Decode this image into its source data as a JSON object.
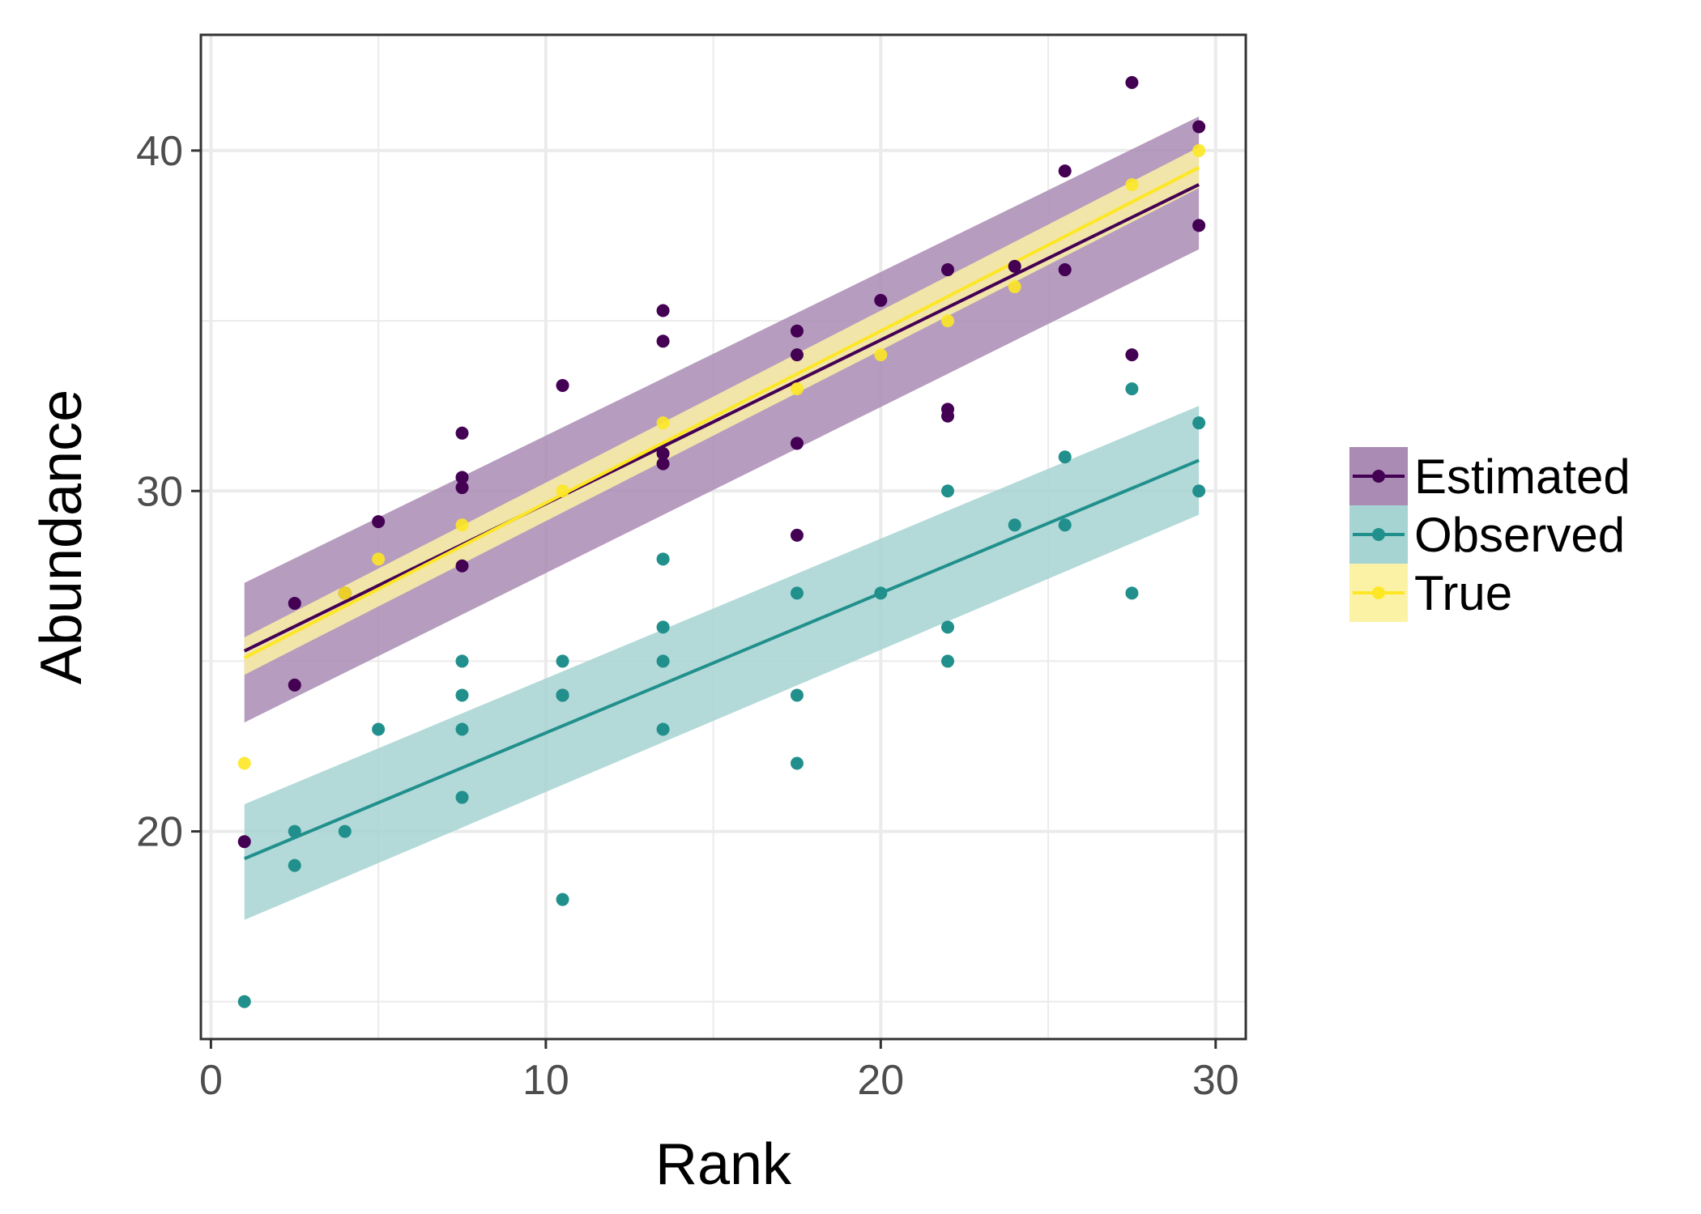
{
  "chart_data": {
    "type": "scatter",
    "xlabel": "Rank",
    "ylabel": "Abundance",
    "xlim": [
      -0.3,
      30.9
    ],
    "ylim": [
      13.9,
      43.4
    ],
    "x_ticks": [
      0,
      10,
      20,
      30
    ],
    "y_ticks": [
      20,
      30,
      40
    ],
    "grid": true,
    "legend_position": "right",
    "series": [
      {
        "name": "Estimated",
        "color": "#440154",
        "fill": "#A98BB3",
        "points": [
          [
            1,
            19.7
          ],
          [
            2.5,
            26.7
          ],
          [
            2.5,
            24.3
          ],
          [
            4,
            27
          ],
          [
            5,
            29.1
          ],
          [
            7.5,
            31.7
          ],
          [
            7.5,
            30.4
          ],
          [
            7.5,
            30.1
          ],
          [
            7.5,
            27.8
          ],
          [
            10.5,
            33.1
          ],
          [
            10.5,
            24
          ],
          [
            13.5,
            35.3
          ],
          [
            13.5,
            34.4
          ],
          [
            13.5,
            31.1
          ],
          [
            13.5,
            30.8
          ],
          [
            17.5,
            34.7
          ],
          [
            17.5,
            34
          ],
          [
            17.5,
            31.4
          ],
          [
            17.5,
            28.7
          ],
          [
            20,
            35.6
          ],
          [
            22,
            36.5
          ],
          [
            22,
            32.4
          ],
          [
            22,
            32.2
          ],
          [
            24,
            36.6
          ],
          [
            25.5,
            39.4
          ],
          [
            25.5,
            36.5
          ],
          [
            27.5,
            42
          ],
          [
            27.5,
            34
          ],
          [
            29.5,
            40.7
          ],
          [
            29.5,
            37.8
          ]
        ],
        "fit": {
          "x": [
            1,
            29.5
          ],
          "y": [
            25.3,
            39.0
          ]
        },
        "ci": {
          "x": [
            1,
            29.5
          ],
          "lower": [
            23.2,
            37.1
          ],
          "upper": [
            27.3,
            41.0
          ]
        }
      },
      {
        "name": "Observed",
        "color": "#21908C",
        "fill": "#A6D4D2",
        "points": [
          [
            1,
            15
          ],
          [
            2.5,
            20
          ],
          [
            2.5,
            19
          ],
          [
            4,
            20
          ],
          [
            5,
            23
          ],
          [
            7.5,
            25
          ],
          [
            7.5,
            24
          ],
          [
            7.5,
            23
          ],
          [
            7.5,
            21
          ],
          [
            10.5,
            25
          ],
          [
            10.5,
            24
          ],
          [
            10.5,
            18
          ],
          [
            13.5,
            28
          ],
          [
            13.5,
            26
          ],
          [
            13.5,
            25
          ],
          [
            13.5,
            23
          ],
          [
            17.5,
            27
          ],
          [
            17.5,
            24
          ],
          [
            17.5,
            22
          ],
          [
            20,
            27
          ],
          [
            22,
            30
          ],
          [
            22,
            26
          ],
          [
            22,
            25
          ],
          [
            24,
            29
          ],
          [
            25.5,
            31
          ],
          [
            25.5,
            29
          ],
          [
            27.5,
            33
          ],
          [
            27.5,
            27
          ],
          [
            29.5,
            32
          ],
          [
            29.5,
            30
          ]
        ],
        "fit": {
          "x": [
            1,
            29.5
          ],
          "y": [
            19.2,
            30.9
          ]
        },
        "ci": {
          "x": [
            1,
            29.5
          ],
          "lower": [
            17.4,
            29.3
          ],
          "upper": [
            20.8,
            32.5
          ]
        }
      },
      {
        "name": "True",
        "color": "#FDE725",
        "fill": "#FBF2A6",
        "points": [
          [
            1,
            22
          ],
          [
            4,
            27
          ],
          [
            5,
            28
          ],
          [
            7.5,
            29
          ],
          [
            10.5,
            30
          ],
          [
            13.5,
            32
          ],
          [
            17.5,
            33
          ],
          [
            20,
            34
          ],
          [
            22,
            35
          ],
          [
            24,
            36
          ],
          [
            27.5,
            39
          ],
          [
            29.5,
            40
          ]
        ],
        "fit": {
          "x": [
            1,
            29.5
          ],
          "y": [
            25.1,
            39.5
          ]
        },
        "ci": {
          "x": [
            1,
            29.5
          ],
          "lower": [
            24.6,
            38.9
          ],
          "upper": [
            25.7,
            40.1
          ]
        }
      }
    ]
  }
}
